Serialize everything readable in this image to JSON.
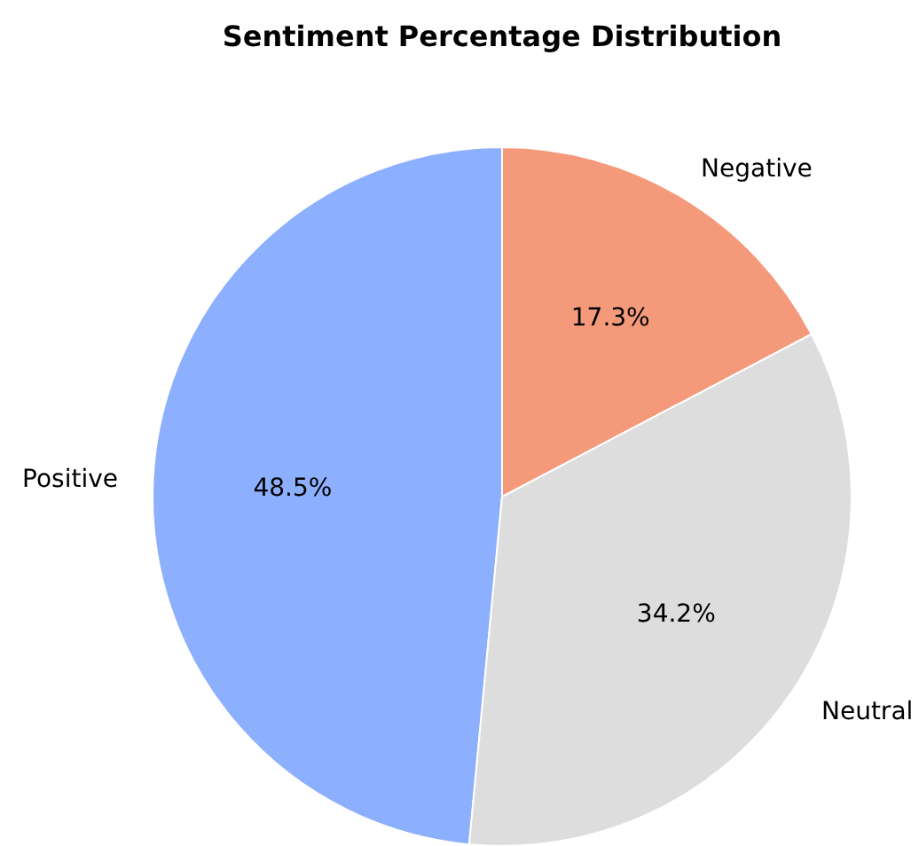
{
  "chart_data": {
    "type": "pie",
    "title": "Sentiment Percentage Distribution",
    "categories": [
      "Positive",
      "Neutral",
      "Negative"
    ],
    "values": [
      48.5,
      34.2,
      17.3
    ],
    "colors": [
      "#8db0fe",
      "#dddddd",
      "#f49a7b"
    ],
    "value_labels": [
      "48.5%",
      "34.2%",
      "17.3%"
    ]
  }
}
